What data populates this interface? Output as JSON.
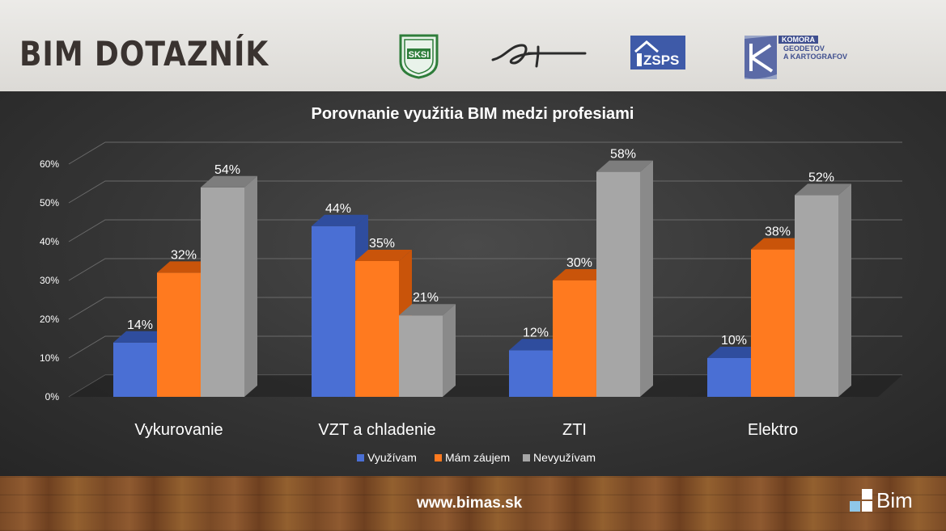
{
  "header": {
    "title": "BIM DOTAZNÍK",
    "logos": {
      "sksi": "SKSI",
      "zsps": "ZSPS",
      "komora_line1": "KOMORA",
      "komora_line2": "GEODETOV",
      "komora_line3": "A KARTOGRAFOV"
    }
  },
  "footer": {
    "website": "www.bimas.sk",
    "brand": "Bim"
  },
  "colors": {
    "series1": "#4a6fd4",
    "series2": "#ff7a1f",
    "series3": "#a6a6a6",
    "text": "#ffffff"
  },
  "chart_data": {
    "type": "bar",
    "title": "Porovnanie využitia BIM medzi profesiami",
    "categories": [
      "Vykurovanie",
      "VZT a chladenie",
      "ZTI",
      "Elektro"
    ],
    "series": [
      {
        "name": "Využívam",
        "values": [
          14,
          44,
          12,
          10
        ]
      },
      {
        "name": "Mám záujem",
        "values": [
          32,
          35,
          30,
          38
        ]
      },
      {
        "name": "Nevyužívam",
        "values": [
          54,
          21,
          58,
          52
        ]
      }
    ],
    "value_suffix": "%",
    "yticks": [
      "0%",
      "10%",
      "20%",
      "30%",
      "40%",
      "50%",
      "60%"
    ],
    "ylim": [
      0,
      60
    ],
    "grid": true,
    "legend": "bottom",
    "style": "3d-column"
  }
}
